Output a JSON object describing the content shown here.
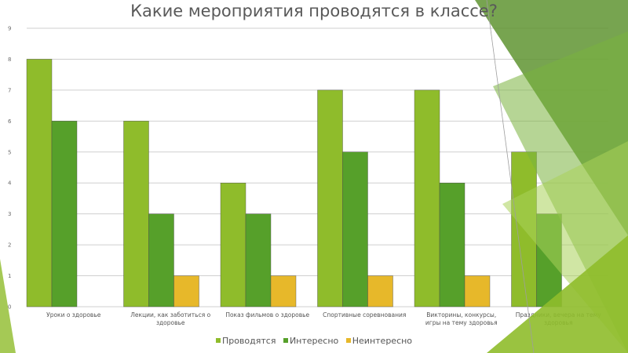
{
  "chart_data": {
    "type": "bar",
    "title": "Какие мероприятия проводятся в классе?",
    "categories": [
      [
        "Уроки о здоровье"
      ],
      [
        "Лекции, как заботиться о",
        "здоровье"
      ],
      [
        "Показ фильмов о здоровье"
      ],
      [
        "Спортивные соревнования"
      ],
      [
        "Викторины, конкурсы,",
        "игры на тему здоровья"
      ],
      [
        "Праздники, вечера на тему",
        "здоровья"
      ]
    ],
    "series": [
      {
        "name": "Проводятся",
        "color": "#8fbc2b",
        "values": [
          8,
          6,
          4,
          7,
          7,
          5
        ]
      },
      {
        "name": "Интересно",
        "color": "#56a02a",
        "values": [
          6,
          3,
          3,
          5,
          4,
          3
        ]
      },
      {
        "name": "Неинтересно",
        "color": "#e7b82a",
        "values": [
          0,
          1,
          1,
          1,
          1,
          0
        ]
      }
    ],
    "ylim": [
      0,
      9
    ],
    "yticks": [
      0,
      1,
      2,
      3,
      4,
      5,
      6,
      7,
      8,
      9
    ],
    "grid": true,
    "legend_position": "bottom"
  },
  "decoration": {
    "accent_dark": "#5f9431",
    "accent_light": "#a9d15a"
  }
}
